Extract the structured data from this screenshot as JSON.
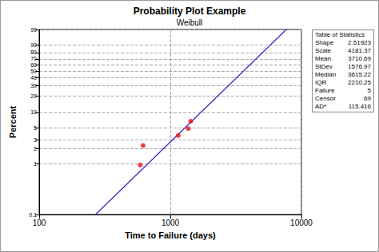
{
  "chart_data": {
    "type": "probability",
    "title": "Probability Plot Example",
    "subtitle": "Weibull",
    "x_label": "Time to Failure (days)",
    "y_label": "Percent",
    "log": "x",
    "grid": true,
    "xlim": [
      100,
      10000
    ],
    "xticks": [
      100,
      1000,
      10000
    ],
    "ylim": [
      0.1,
      99
    ],
    "yticks": [
      0.1,
      1,
      2,
      3,
      5,
      10,
      20,
      30,
      40,
      50,
      60,
      70,
      80,
      90,
      99
    ],
    "series": [
      {
        "type": "scatter",
        "marker": "circle",
        "color": "#e8101a",
        "x": [
          590,
          620,
          1150,
          1370,
          1430
        ],
        "values": [
          0.95,
          2.3,
          3.6,
          4.9,
          6.8
        ]
      },
      {
        "type": "line",
        "line_style": "solid",
        "color": "#2b2bc4",
        "x": [
          269,
          7666
        ],
        "values": [
          0.1,
          99
        ]
      }
    ],
    "table": {
      "title": "Table of Statistics",
      "rows": [
        [
          "Shape",
          2.51923
        ],
        [
          "Scale",
          4181.37
        ],
        [
          "Mean",
          3710.69
        ],
        [
          "StDev",
          1576.97
        ],
        [
          "Median",
          3615.22
        ],
        [
          "IQR",
          2210.25
        ],
        [
          "Failure",
          5
        ],
        [
          "Censor",
          69
        ],
        [
          "AD*",
          115.416
        ]
      ]
    }
  }
}
